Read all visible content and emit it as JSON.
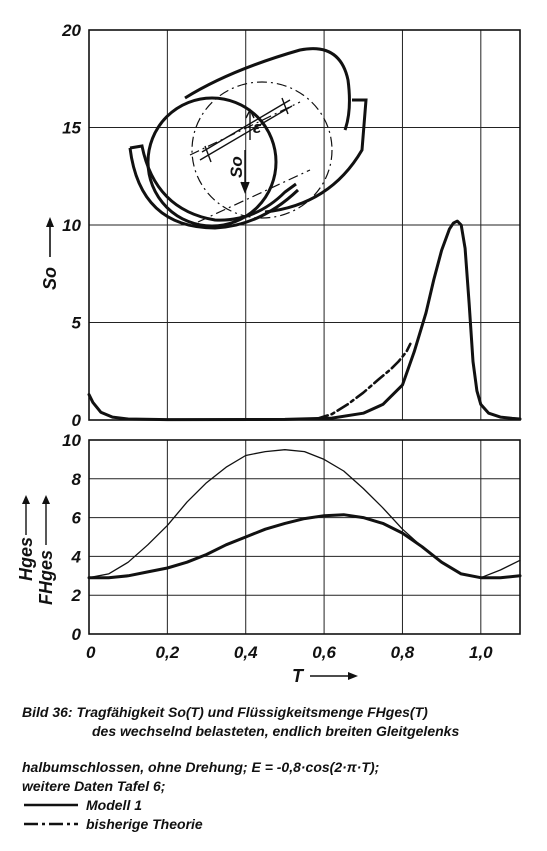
{
  "chart_data": [
    {
      "type": "line",
      "ylabel": "So",
      "xlim": [
        0,
        1.1
      ],
      "ylim": [
        0,
        20
      ],
      "yticks": [
        "0",
        "5",
        "10",
        "15",
        "20"
      ],
      "grid": true,
      "series": [
        {
          "name": "Modell 1",
          "style": "solid-thick",
          "x": [
            0,
            0.01,
            0.03,
            0.06,
            0.1,
            0.2,
            0.5,
            0.62,
            0.7,
            0.75,
            0.8,
            0.83,
            0.86,
            0.88,
            0.9,
            0.92,
            0.93,
            0.94,
            0.95,
            0.96,
            0.97,
            0.98,
            0.99,
            1.0,
            1.02,
            1.05,
            1.08,
            1.1
          ],
          "y": [
            1.3,
            0.9,
            0.4,
            0.15,
            0.05,
            0.02,
            0.03,
            0.1,
            0.35,
            0.8,
            1.8,
            3.5,
            5.5,
            7.2,
            8.7,
            9.8,
            10.1,
            10.2,
            10.0,
            8.8,
            6.0,
            3.0,
            1.5,
            0.8,
            0.35,
            0.15,
            0.08,
            0.05
          ]
        },
        {
          "name": "bisherige Theorie",
          "style": "dash-dot",
          "x": [
            0.58,
            0.62,
            0.66,
            0.7,
            0.74,
            0.77,
            0.79,
            0.81,
            0.82
          ],
          "y": [
            0.05,
            0.3,
            0.8,
            1.4,
            2.1,
            2.6,
            3.0,
            3.5,
            3.9
          ]
        }
      ]
    },
    {
      "type": "line",
      "xlabel": "T",
      "ylabel_top": "Hges",
      "ylabel_bottom": "FHges",
      "xlim": [
        0,
        1.1
      ],
      "ylim": [
        0,
        10
      ],
      "xticks": [
        "0",
        "0,2",
        "0,4",
        "0,6",
        "0,8",
        "1,0"
      ],
      "yticks": [
        "0",
        "2",
        "4",
        "6",
        "8",
        "10"
      ],
      "grid": true,
      "series": [
        {
          "name": "Hges",
          "style": "solid-thin",
          "x": [
            0,
            0.05,
            0.1,
            0.15,
            0.2,
            0.25,
            0.3,
            0.35,
            0.4,
            0.45,
            0.5,
            0.55,
            0.6,
            0.65,
            0.7,
            0.75,
            0.8,
            0.85,
            0.9,
            0.95,
            1.0,
            1.05,
            1.1
          ],
          "y": [
            2.9,
            3.1,
            3.7,
            4.6,
            5.6,
            6.8,
            7.8,
            8.6,
            9.2,
            9.4,
            9.5,
            9.4,
            9.0,
            8.4,
            7.5,
            6.5,
            5.4,
            4.5,
            3.7,
            3.1,
            2.9,
            3.3,
            3.8
          ]
        },
        {
          "name": "FHges",
          "style": "solid-thick",
          "x": [
            0,
            0.05,
            0.1,
            0.15,
            0.2,
            0.25,
            0.3,
            0.35,
            0.4,
            0.45,
            0.5,
            0.55,
            0.6,
            0.65,
            0.7,
            0.75,
            0.8,
            0.85,
            0.9,
            0.95,
            1.0,
            1.05,
            1.1
          ],
          "y": [
            2.9,
            2.9,
            3.0,
            3.2,
            3.4,
            3.7,
            4.1,
            4.6,
            5.0,
            5.4,
            5.7,
            5.95,
            6.1,
            6.15,
            6.0,
            5.7,
            5.2,
            4.5,
            3.7,
            3.1,
            2.9,
            2.9,
            3.0
          ]
        }
      ]
    }
  ],
  "caption": {
    "line1": "Bild 36: Tragfähigkeit So(T) und Flüssigkeitsmenge FHges(T)",
    "line2": "des wechselnd belasteten, endlich breiten Gleitgelenks",
    "line3": "halbumschlossen, ohne Drehung; E = -0,8·cos(2·π·T);",
    "line4": "weitere Daten Tafel 6;"
  },
  "inset": {
    "epsilon_label": "ε",
    "so_label": "So"
  },
  "legend": [
    {
      "label": "Modell 1",
      "style": "solid"
    },
    {
      "label": "bisherige Theorie",
      "style": "dash-dot"
    }
  ]
}
